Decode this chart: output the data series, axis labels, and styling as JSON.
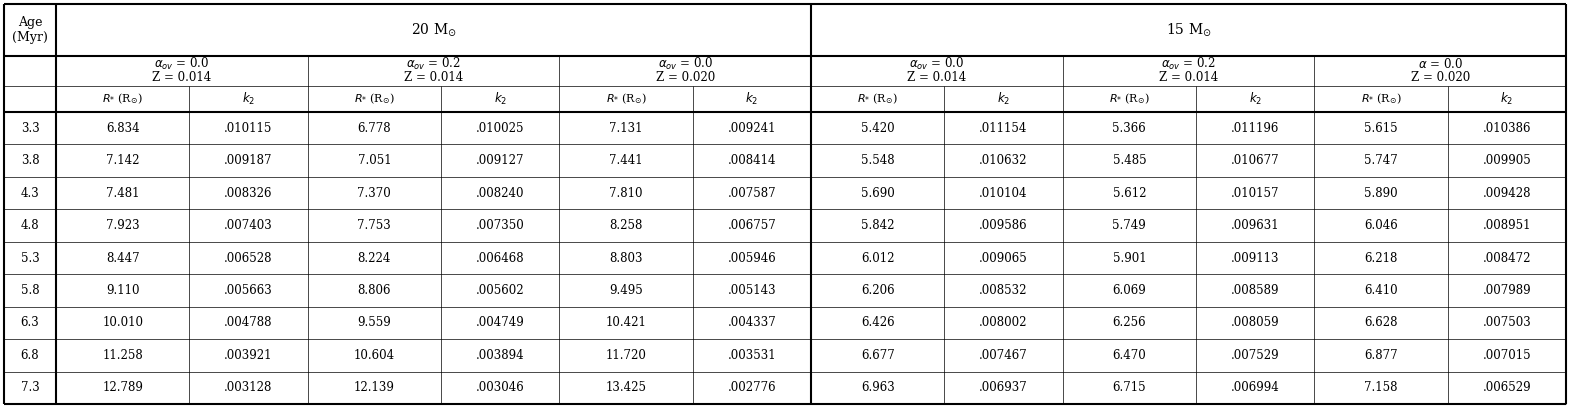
{
  "ages": [
    "3.3",
    "3.8",
    "4.3",
    "4.8",
    "5.3",
    "5.8",
    "6.3",
    "6.8",
    "7.3"
  ],
  "mass20": {
    "col1": {
      "R": [
        "6.834",
        "7.142",
        "7.481",
        "7.923",
        "8.447",
        "9.110",
        "10.010",
        "11.258",
        "12.789"
      ],
      "k2": [
        ".010115",
        ".009187",
        ".008326",
        ".007403",
        ".006528",
        ".005663",
        ".004788",
        ".003921",
        ".003128"
      ]
    },
    "col2": {
      "R": [
        "6.778",
        "7.051",
        "7.370",
        "7.753",
        "8.224",
        "8.806",
        "9.559",
        "10.604",
        "12.139"
      ],
      "k2": [
        ".010025",
        ".009127",
        ".008240",
        ".007350",
        ".006468",
        ".005602",
        ".004749",
        ".003894",
        ".003046"
      ]
    },
    "col3": {
      "R": [
        "7.131",
        "7.441",
        "7.810",
        "8.258",
        "8.803",
        "9.495",
        "10.421",
        "11.720",
        "13.425"
      ],
      "k2": [
        ".009241",
        ".008414",
        ".007587",
        ".006757",
        ".005946",
        ".005143",
        ".004337",
        ".003531",
        ".002776"
      ]
    }
  },
  "mass15": {
    "col1": {
      "R": [
        "5.420",
        "5.548",
        "5.690",
        "5.842",
        "6.012",
        "6.206",
        "6.426",
        "6.677",
        "6.963"
      ],
      "k2": [
        ".011154",
        ".010632",
        ".010104",
        ".009586",
        ".009065",
        ".008532",
        ".008002",
        ".007467",
        ".006937"
      ]
    },
    "col2": {
      "R": [
        "5.366",
        "5.485",
        "5.612",
        "5.749",
        "5.901",
        "6.069",
        "6.256",
        "6.470",
        "6.715"
      ],
      "k2": [
        ".011196",
        ".010677",
        ".010157",
        ".009631",
        ".009113",
        ".008589",
        ".008059",
        ".007529",
        ".006994"
      ]
    },
    "col3": {
      "R": [
        "5.615",
        "5.747",
        "5.890",
        "6.046",
        "6.218",
        "6.410",
        "6.628",
        "6.877",
        "7.158"
      ],
      "k2": [
        ".010386",
        ".009905",
        ".009428",
        ".008951",
        ".008472",
        ".007989",
        ".007503",
        ".007015",
        ".006529"
      ]
    }
  },
  "bg_color": "#ffffff",
  "text_color": "#000000",
  "thick_lw": 1.5,
  "thin_lw": 0.5
}
